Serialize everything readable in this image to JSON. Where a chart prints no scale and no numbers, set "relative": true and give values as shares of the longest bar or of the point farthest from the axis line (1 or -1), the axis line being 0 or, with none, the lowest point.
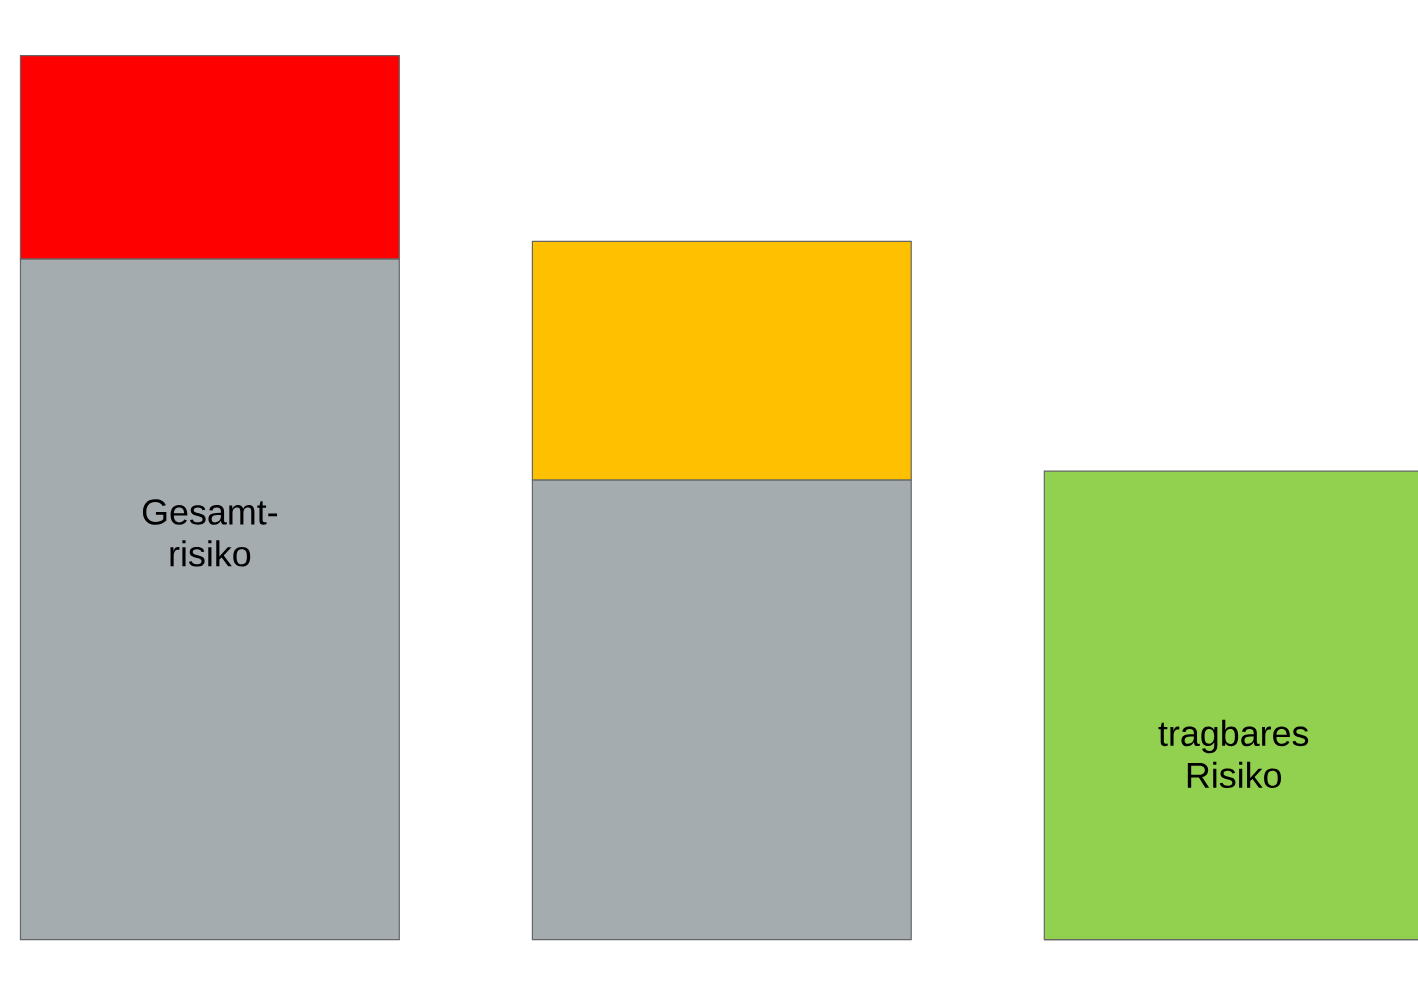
{
  "chart_data": {
    "type": "bar",
    "relative": true,
    "stacked": true,
    "categories": [
      null,
      null,
      null
    ],
    "series": [
      {
        "color": "#a5acb0",
        "values": [
          0.77,
          0.52,
          0
        ]
      },
      {
        "colors": [
          "#ff0000",
          "#ffc000",
          "#92d050"
        ],
        "values": [
          0.23,
          0.27,
          0.53
        ]
      }
    ],
    "annotations": [
      "Gesamt-risiko",
      "tragbares Risiko"
    ]
  }
}
